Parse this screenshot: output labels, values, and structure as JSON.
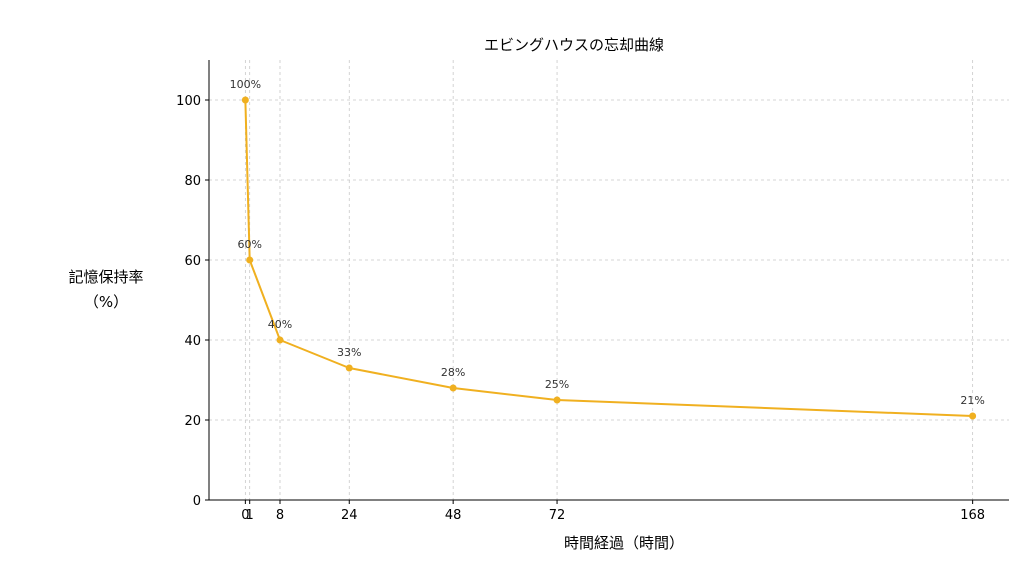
{
  "chart_data": {
    "type": "line",
    "title": "エビングハウスの忘却曲線",
    "xlabel": "時間経過（時間）",
    "ylabel_lines": [
      "記憶保持率",
      "（%）"
    ],
    "x": [
      0,
      1,
      8,
      24,
      48,
      72,
      168
    ],
    "series": [
      {
        "values": [
          100,
          60,
          40,
          33,
          28,
          25,
          21
        ]
      }
    ],
    "data_labels": [
      "100%",
      "60%",
      "40%",
      "33%",
      "28%",
      "25%",
      "21%"
    ],
    "x_ticks": [
      0,
      1,
      8,
      24,
      48,
      72,
      168
    ],
    "x_tick_labels": [
      "0",
      "1",
      "8",
      "24",
      "48",
      "72",
      "168"
    ],
    "y_ticks": [
      0,
      20,
      40,
      60,
      80,
      100
    ],
    "y_tick_labels": [
      "0",
      "20",
      "40",
      "60",
      "80",
      "100"
    ],
    "xlim": [
      -8.4,
      176.4
    ],
    "ylim": [
      0,
      110
    ],
    "grid": true,
    "line_color": "#f0b020"
  }
}
